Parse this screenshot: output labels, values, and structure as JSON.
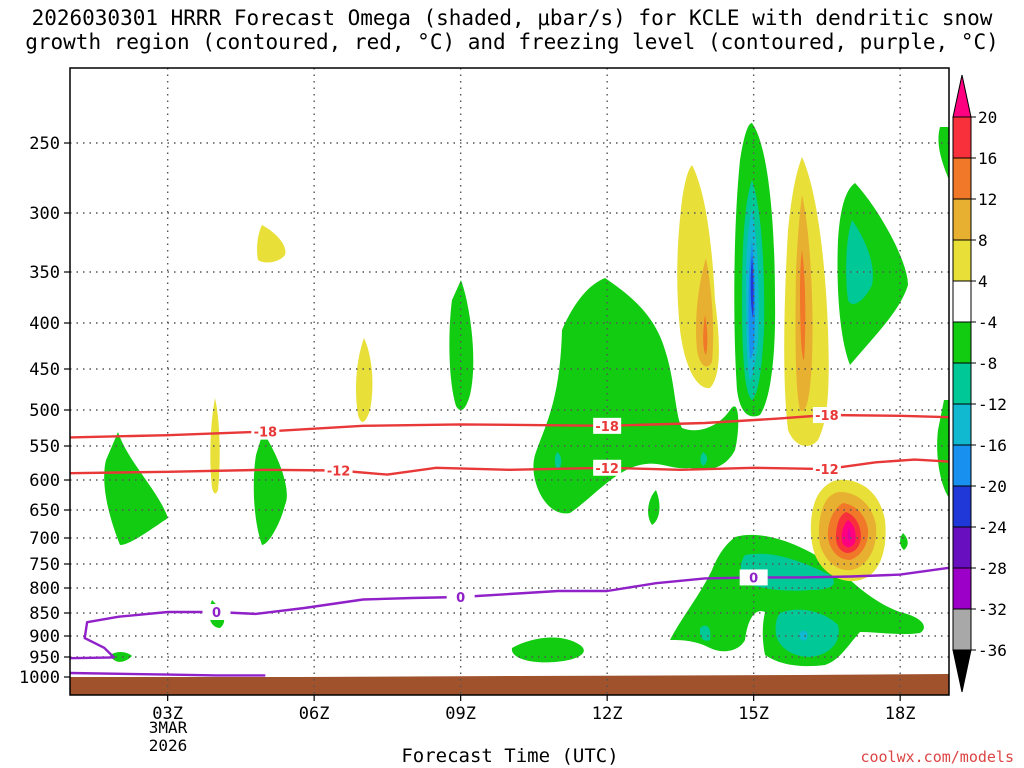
{
  "chart_data": {
    "type": "contour",
    "title": "2026030301 HRRR Forecast Omega (shaded, μbar/s) for KCLE with dendritic snow\ngrowth region (contoured, red, °C) and freezing level (contoured, purple, °C)",
    "xlabel": "Forecast Time (UTC)",
    "date_label": "3MAR\n2026",
    "credit": "coolwx.com/models",
    "x_axis": {
      "unit": "hours since 00Z 3MAR2026",
      "range": [
        1,
        19
      ],
      "ticks": [
        {
          "hour": 3,
          "label": "03Z"
        },
        {
          "hour": 6,
          "label": "06Z"
        },
        {
          "hour": 9,
          "label": "09Z"
        },
        {
          "hour": 12,
          "label": "12Z"
        },
        {
          "hour": 15,
          "label": "15Z"
        },
        {
          "hour": 18,
          "label": "18Z"
        }
      ]
    },
    "y_axis": {
      "unit": "hPa",
      "range": [
        1000,
        200
      ],
      "ticks": [
        250,
        300,
        350,
        400,
        450,
        500,
        550,
        600,
        650,
        700,
        750,
        800,
        850,
        900,
        950,
        1000
      ]
    },
    "colorbar": {
      "levels": [
        20,
        16,
        12,
        8,
        4,
        -4,
        -8,
        -12,
        -16,
        -20,
        -24,
        -28,
        -32,
        -36
      ],
      "colors": [
        "#ff0080",
        "#f8303c",
        "#f07828",
        "#e8b030",
        "#e8e038",
        "#ffffff",
        "#11cc11",
        "#00c896",
        "#10b8d0",
        "#1890f0",
        "#2038d8",
        "#6810c0",
        "#9c00c8",
        "#a8a8a8",
        "#000000"
      ]
    },
    "contours": [
      {
        "name": "dendritic -18",
        "label": "-18",
        "color": "#e83838",
        "points": [
          [
            1,
            538
          ],
          [
            3,
            535
          ],
          [
            5,
            530
          ],
          [
            7,
            522
          ],
          [
            9,
            520
          ],
          [
            12,
            522
          ],
          [
            14,
            518
          ],
          [
            15.5,
            512
          ],
          [
            16.5,
            507
          ],
          [
            18,
            508
          ],
          [
            19,
            510
          ]
        ]
      },
      {
        "name": "dendritic -12",
        "label": "-12",
        "color": "#e83838",
        "points": [
          [
            1,
            590
          ],
          [
            3,
            588
          ],
          [
            5,
            585
          ],
          [
            6.5,
            586
          ],
          [
            7.5,
            592
          ],
          [
            8.5,
            582
          ],
          [
            10,
            585
          ],
          [
            12,
            582
          ],
          [
            13.5,
            585
          ],
          [
            15,
            582
          ],
          [
            16.5,
            584
          ],
          [
            17.5,
            574
          ],
          [
            18.3,
            570
          ],
          [
            19,
            573
          ]
        ]
      },
      {
        "name": "freezing level 0",
        "label": "0",
        "color": "#9020c8",
        "points": [
          [
            1,
            953
          ],
          [
            1.9,
            951
          ],
          [
            1.7,
            928
          ],
          [
            1.3,
            905
          ],
          [
            1.35,
            870
          ],
          [
            2,
            858
          ],
          [
            3,
            848
          ],
          [
            4,
            848
          ],
          [
            4.8,
            852
          ],
          [
            5.8,
            840
          ],
          [
            7,
            823
          ],
          [
            8,
            820
          ],
          [
            9,
            818
          ],
          [
            10,
            812
          ],
          [
            11,
            806
          ],
          [
            12,
            806
          ],
          [
            13,
            790
          ],
          [
            14,
            780
          ],
          [
            15,
            778
          ],
          [
            16,
            778
          ],
          [
            17,
            776
          ],
          [
            18,
            772
          ],
          [
            19,
            758
          ]
        ]
      },
      {
        "name": "freezing level 0 lower",
        "label": "",
        "color": "#9020c8",
        "points": [
          [
            1,
            990
          ],
          [
            3,
            994
          ],
          [
            4,
            996
          ],
          [
            5,
            996
          ]
        ]
      }
    ],
    "omega_regions_sign": "negative values (upward motion) shaded green/cyan/blue; positive values (sinking) shaded yellow/orange/red/magenta",
    "omega_regions": [
      {
        "name": "upward column 15Z",
        "center": [
          15,
          370
        ],
        "peak": -24
      },
      {
        "name": "upward core 17Z",
        "center": [
          17.3,
          340
        ],
        "peak": -12
      },
      {
        "name": "upward core 12Z",
        "center": [
          12,
          480
        ],
        "peak": -12
      },
      {
        "name": "upward lobe 15.5Z lower",
        "center": [
          15.5,
          780
        ],
        "peak": -12
      },
      {
        "name": "upward lobe 16Z near surface",
        "center": [
          16,
          915
        ],
        "peak": -16
      },
      {
        "name": "sinking core 17Z",
        "center": [
          17,
          700
        ],
        "peak": 20
      },
      {
        "name": "sinking column 16Z",
        "center": [
          16,
          420
        ],
        "peak": 12
      },
      {
        "name": "sinking column 14Z",
        "center": [
          14,
          380
        ],
        "peak": 8
      }
    ]
  }
}
